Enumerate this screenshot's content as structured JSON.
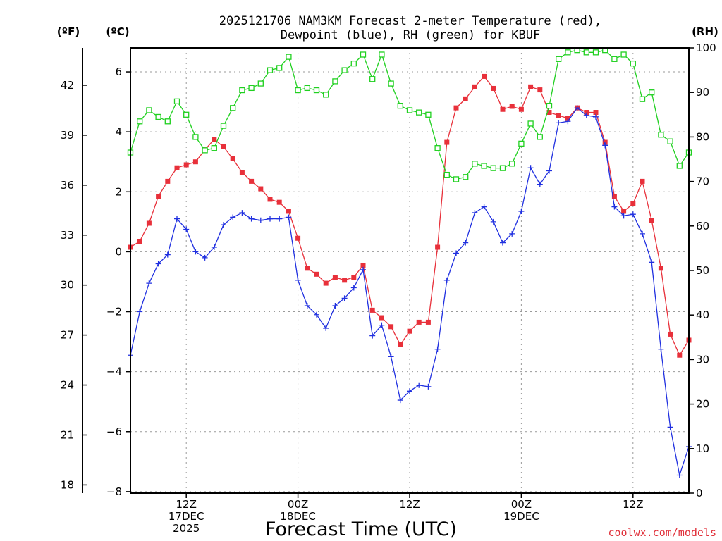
{
  "chart_data": {
    "type": "line",
    "title_line1": "2025121706 NAM3KM Forecast 2-meter Temperature (red),",
    "title_line2": "Dewpoint (blue), RH (green) for KBUF",
    "xlabel": "Forecast Time (UTC)",
    "credit": "coolwx.com/models",
    "left_outer_unit": "(ºF)",
    "left_unit": "(ºC)",
    "right_unit": "(RH)",
    "x_ticks": [
      {
        "hour": 6,
        "labels": [
          "12Z",
          "17DEC",
          "2025"
        ]
      },
      {
        "hour": 18,
        "labels": [
          "00Z",
          "18DEC"
        ]
      },
      {
        "hour": 30,
        "labels": [
          "12Z"
        ]
      },
      {
        "hour": 42,
        "labels": [
          "00Z",
          "19DEC"
        ]
      },
      {
        "hour": 54,
        "labels": [
          "12Z"
        ]
      }
    ],
    "x_range_hours": [
      0,
      60
    ],
    "celsius_ticks": [
      "−8",
      "−6",
      "−4",
      "−2",
      "0",
      "2",
      "4",
      "6"
    ],
    "celsius_range": [
      -8.05,
      6.8
    ],
    "fahrenheit_ticks": [
      "18",
      "21",
      "24",
      "27",
      "30",
      "33",
      "36",
      "39",
      "42"
    ],
    "rh_ticks": [
      "0",
      "10",
      "20",
      "30",
      "40",
      "50",
      "60",
      "70",
      "80",
      "90",
      "100"
    ],
    "rh_range": [
      0,
      100
    ],
    "grid": true,
    "series": [
      {
        "name": "Temperature",
        "color": "#e8303a",
        "marker": "filled-square",
        "axis": "celsius",
        "values": [
          0.15,
          0.35,
          0.95,
          1.85,
          2.35,
          2.8,
          2.9,
          3.0,
          3.4,
          3.75,
          3.5,
          3.1,
          2.65,
          2.35,
          2.1,
          1.75,
          1.65,
          1.35,
          0.45,
          -0.55,
          -0.75,
          -1.05,
          -0.85,
          -0.95,
          -0.85,
          -0.45,
          -1.95,
          -2.2,
          -2.5,
          -3.1,
          -2.65,
          -2.35,
          -2.35,
          0.15,
          3.65,
          4.8,
          5.1,
          5.5,
          5.85,
          5.45,
          4.75,
          4.85,
          4.75,
          5.5,
          5.4,
          4.65,
          4.55,
          4.45,
          4.8,
          4.65,
          4.65,
          3.65,
          1.85,
          1.35,
          1.6,
          2.35,
          1.05,
          -0.55,
          -2.75,
          -3.45,
          -2.95
        ],
        "hours_start": 0
      },
      {
        "name": "Dewpoint",
        "color": "#2030e0",
        "marker": "plus",
        "axis": "celsius",
        "values": [
          -3.45,
          -2.0,
          -1.05,
          -0.4,
          -0.1,
          1.1,
          0.75,
          0.0,
          -0.2,
          0.15,
          0.9,
          1.15,
          1.3,
          1.1,
          1.05,
          1.1,
          1.1,
          1.15,
          -0.95,
          -1.8,
          -2.1,
          -2.55,
          -1.8,
          -1.55,
          -1.2,
          -0.6,
          -2.8,
          -2.45,
          -3.5,
          -4.95,
          -4.65,
          -4.45,
          -4.5,
          -3.25,
          -0.95,
          -0.05,
          0.3,
          1.3,
          1.5,
          1.0,
          0.3,
          0.6,
          1.35,
          2.8,
          2.25,
          2.7,
          4.3,
          4.35,
          4.8,
          4.55,
          4.5,
          3.55,
          1.5,
          1.2,
          1.25,
          0.6,
          -0.35,
          -3.25,
          -5.85,
          -7.45,
          -6.5
        ],
        "hours_start": 0
      },
      {
        "name": "RH",
        "color": "#20d020",
        "marker": "open-square",
        "axis": "rh",
        "values": [
          76.5,
          83.5,
          86,
          84.5,
          83.5,
          88,
          85,
          80,
          77,
          77.5,
          82.5,
          86.5,
          90.5,
          91,
          92,
          95,
          95.5,
          98,
          90.5,
          91,
          90.5,
          89.5,
          92.5,
          95,
          96.5,
          98.5,
          93,
          98.5,
          92,
          87,
          86,
          85.5,
          85,
          77.5,
          71.5,
          70.5,
          71,
          74,
          73.5,
          73,
          73,
          74,
          78.5,
          83,
          80,
          87,
          97.5,
          99,
          99.5,
          99,
          99,
          99.5,
          97.5,
          98.5,
          96.5,
          88.5,
          90,
          80.5,
          79,
          73.5,
          76.5
        ],
        "hours_start": 0
      }
    ]
  }
}
